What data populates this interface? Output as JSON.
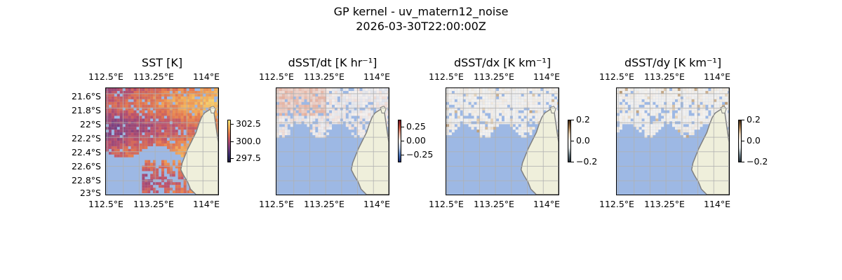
{
  "figure": {
    "title": "GP kernel - uv_matern12_noise",
    "subtitle": "2026-03-30T22:00:00Z"
  },
  "colors": {
    "ocean_mask": "#9db8e4",
    "land": "#efefdb",
    "coast": "#808080",
    "grid": "#b0b0b0"
  },
  "panels": [
    {
      "id": "sst",
      "title": "SST [K]",
      "top_lon_ticks": [
        "112.5°E",
        "113.25°E",
        "114°E"
      ],
      "bottom_lon_ticks": [
        "112.5°E",
        "113.25°E",
        "114°E"
      ],
      "lat_ticks": [
        "21.6°S",
        "21.8°S",
        "22°S",
        "22.2°S",
        "22.4°S",
        "22.6°S",
        "22.8°S",
        "23°S"
      ],
      "colorbar": {
        "ticks": [
          "302.5",
          "300.0",
          "297.5"
        ],
        "colormap": "thermal"
      }
    },
    {
      "id": "dsst-dt",
      "title": "dSST/dt [K hr⁻¹]",
      "top_lon_ticks": [
        "112.5°E",
        "113.25°E",
        "114°E"
      ],
      "bottom_lon_ticks": [
        "112.5°E",
        "113.25°E",
        "114°E"
      ],
      "lat_ticks": [],
      "colorbar": {
        "ticks": [
          "0.25",
          "0.00",
          "−0.25"
        ],
        "colormap": "balance"
      }
    },
    {
      "id": "dsst-dx",
      "title": "dSST/dx [K km⁻¹]",
      "top_lon_ticks": [
        "112.5°E",
        "113.25°E",
        "114°E"
      ],
      "bottom_lon_ticks": [
        "112.5°E",
        "113.25°E",
        "114°E"
      ],
      "lat_ticks": [],
      "colorbar": {
        "ticks": [
          "0.2",
          "0.0",
          "−0.2"
        ],
        "colormap": "diff-brown"
      }
    },
    {
      "id": "dsst-dy",
      "title": "dSST/dy [K km⁻¹]",
      "top_lon_ticks": [
        "112.5°E",
        "113.25°E",
        "114°E"
      ],
      "bottom_lon_ticks": [
        "112.5°E",
        "113.25°E",
        "114°E"
      ],
      "lat_ticks": [],
      "colorbar": {
        "ticks": [
          "0.2",
          "0.0",
          "−0.2"
        ],
        "colormap": "diff-brown"
      }
    }
  ]
}
